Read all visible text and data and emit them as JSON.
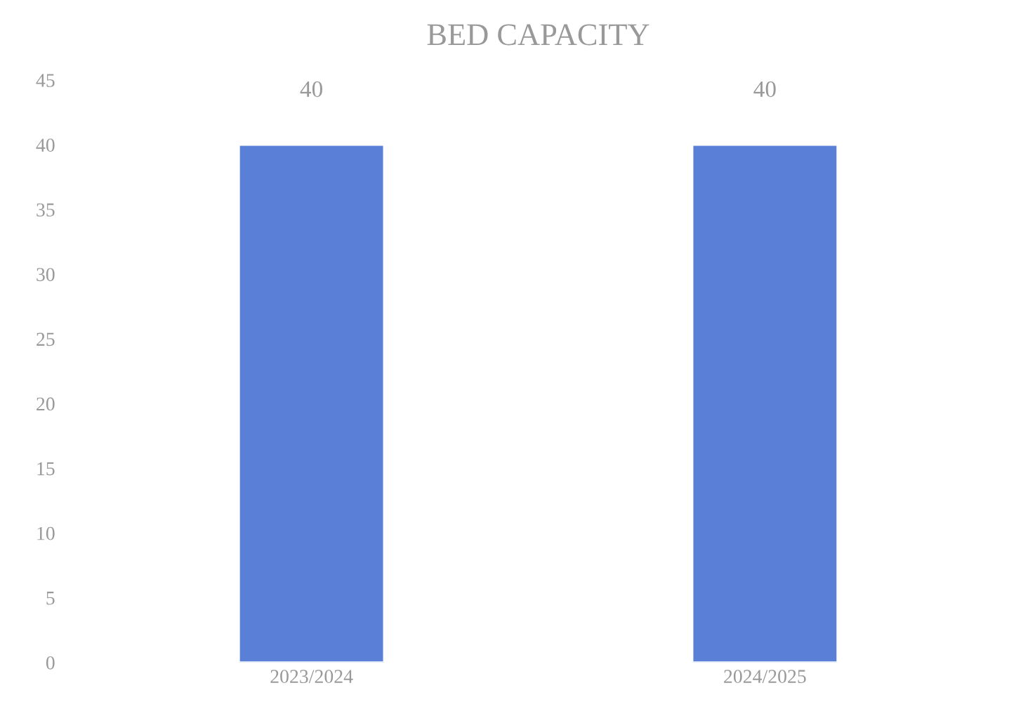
{
  "chart_data": {
    "type": "bar",
    "title": "BED CAPACITY",
    "categories": [
      "2023/2024",
      "2024/2025"
    ],
    "values": [
      40,
      40
    ],
    "color": "#5a7fd6",
    "ylim": [
      0,
      45
    ],
    "yticks": [
      0,
      5,
      10,
      15,
      20,
      25,
      30,
      35,
      40,
      45
    ],
    "data_labels": true,
    "grid": false
  }
}
